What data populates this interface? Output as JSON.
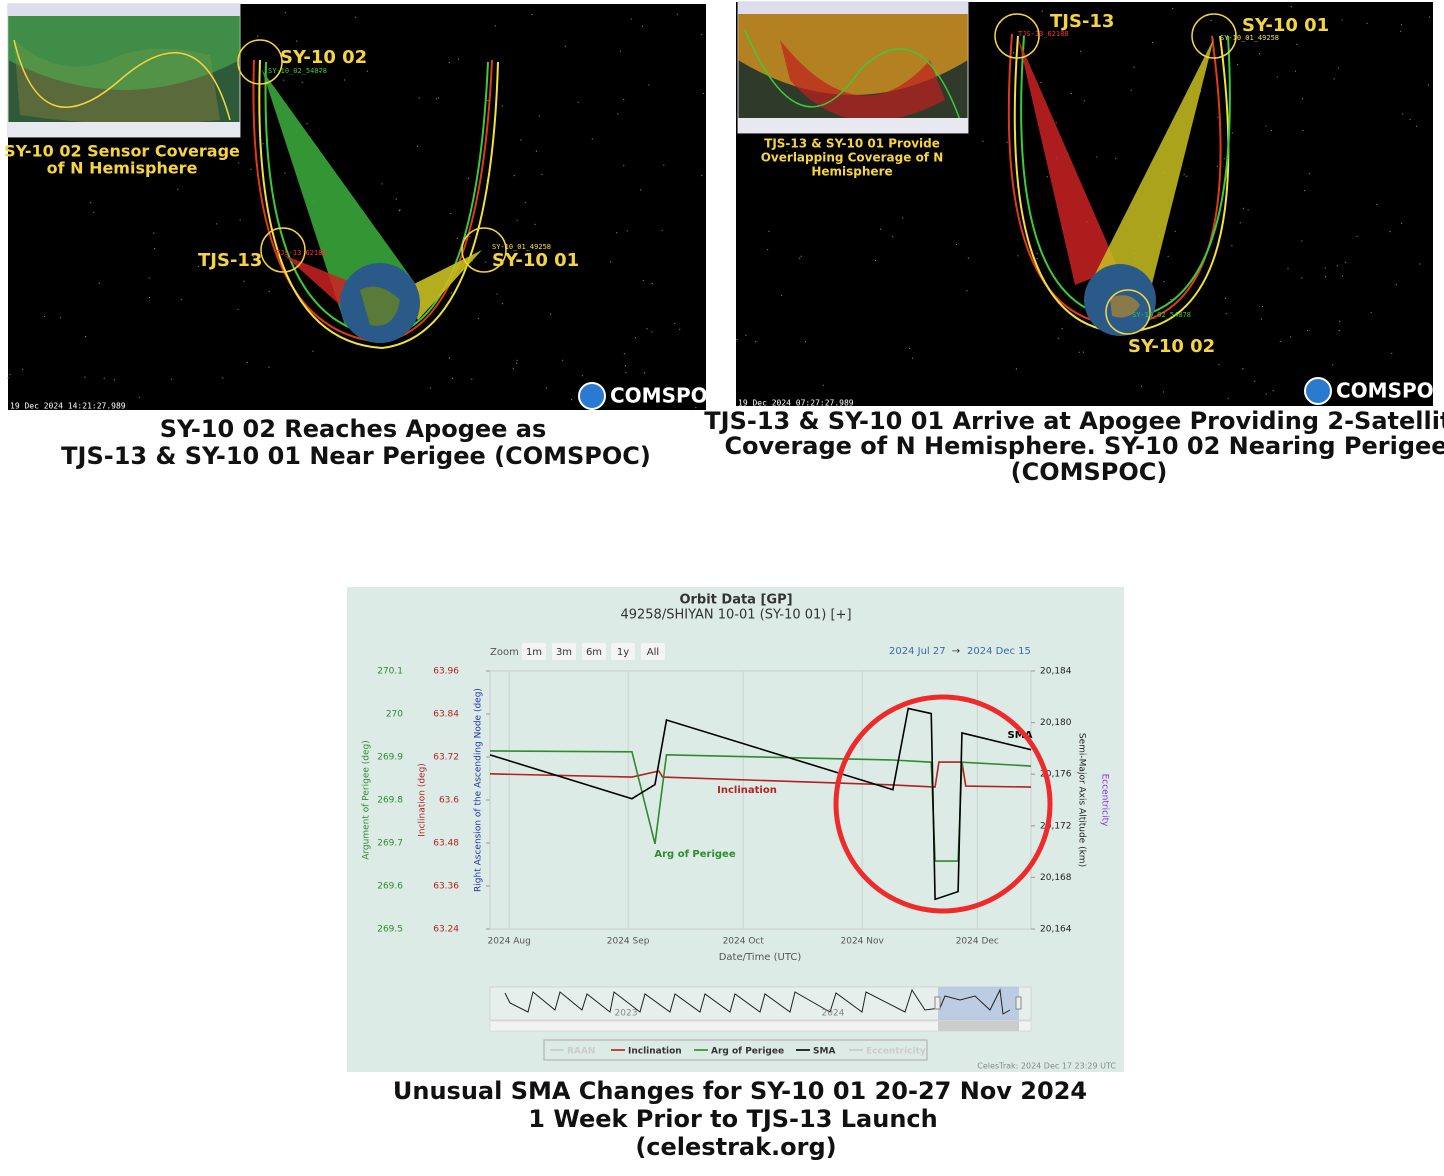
{
  "panels": [
    {
      "inset_caption": [
        "SY-10 02 Sensor Coverage",
        "of N Hemisphere"
      ],
      "labels": [
        "SY-10 02",
        "TJS-13",
        "SY-10 01"
      ],
      "sat_ids": [
        "SY-10_02_54878",
        "TJS-13_62188",
        "SY-10_01_49258"
      ],
      "timestamp": "19 Dec 2024 14:21:27.989",
      "logo": "COMSPOC",
      "caption": [
        "SY-10 02 Reaches Apogee as",
        "TJS-13 & SY-10 01 Near Perigee (COMSPOC)"
      ]
    },
    {
      "inset_caption": [
        "TJS-13 & SY-10 01 Provide",
        "Overlapping Coverage of N",
        "Hemisphere"
      ],
      "labels": [
        "TJS-13",
        "SY-10 01",
        "SY-10 02"
      ],
      "sat_ids": [
        "TJS-13_62188",
        "SY-10_01_49258",
        "SY-10_02_54878"
      ],
      "timestamp": "19 Dec 2024 07:27:27.989",
      "logo": "COMSPOC",
      "caption": [
        "TJS-13 & SY-10 01 Arrive at Apogee Providing 2-Satellite",
        "Coverage of N Hemisphere.  SY-10 02 Nearing Perigee",
        "(COMSPOC)"
      ]
    }
  ],
  "chart_data": {
    "type": "line",
    "title": "Orbit Data [GP]",
    "subtitle": "49258/SHIYAN 10-01 (SY-10 01) [+]",
    "zoom_label": "Zoom",
    "zoom_buttons": [
      "1m",
      "3m",
      "6m",
      "1y",
      "All"
    ],
    "range": [
      "2024 Jul 27",
      "→",
      "2024 Dec 15"
    ],
    "xlabel": "Date/Time (UTC)",
    "xlim": [
      "2024-07-27",
      "2024-12-15"
    ],
    "xticks": [
      {
        "value": "2024-08-01",
        "label": "2024 Aug"
      },
      {
        "value": "2024-09-01",
        "label": "2024 Sep"
      },
      {
        "value": "2024-10-01",
        "label": "2024 Oct"
      },
      {
        "value": "2024-11-01",
        "label": "2024 Nov"
      },
      {
        "value": "2024-12-01",
        "label": "2024 Dec"
      }
    ],
    "grid": true,
    "axes": [
      {
        "title": "Argument of Perigee (deg)",
        "color": "#2e8b2e",
        "lim": [
          269.5,
          270.1
        ],
        "ticks": [
          269.5,
          269.6,
          269.7,
          269.8,
          269.9,
          270,
          270.1
        ]
      },
      {
        "title": "Inclination (deg)",
        "color": "#b22222",
        "lim": [
          63.24,
          63.96
        ],
        "ticks": [
          63.24,
          63.36,
          63.48,
          63.6,
          63.72,
          63.84,
          63.96
        ]
      },
      {
        "title": "Right Ascension of the Ascending Node (deg)",
        "color": "#2233aa"
      },
      {
        "title": "Semi-Major Axis Altitude (km)",
        "color": "#222222",
        "lim": [
          20164,
          20184
        ],
        "ticks": [
          {
            "value": 20164,
            "label": "20,164"
          },
          {
            "value": 20168,
            "label": "20,168"
          },
          {
            "value": 20172,
            "label": "20,172"
          },
          {
            "value": 20176,
            "label": "20,176"
          },
          {
            "value": 20180,
            "label": "20,180"
          },
          {
            "value": 20184,
            "label": "20,184"
          }
        ]
      },
      {
        "title": "Eccentricity",
        "color": "#8a2be2"
      }
    ],
    "series": [
      {
        "name": "RAAN",
        "color": "#c8c8c8",
        "visible": false
      },
      {
        "name": "Inclination",
        "color": "#b22222",
        "axis": 1,
        "annotation": "Inclination",
        "x": [
          "2024-07-27",
          "2024-09-02",
          "2024-09-09",
          "2024-09-10",
          "2024-11-09",
          "2024-11-20",
          "2024-11-21",
          "2024-11-27",
          "2024-11-28",
          "2024-12-15"
        ],
        "values": [
          63.673,
          63.664,
          63.681,
          63.664,
          63.642,
          63.636,
          63.706,
          63.706,
          63.639,
          63.636
        ]
      },
      {
        "name": "Arg of Perigee",
        "color": "#2e8b2e",
        "axis": 0,
        "annotation": "Arg of Perigee",
        "x": [
          "2024-07-27",
          "2024-09-02",
          "2024-09-08",
          "2024-09-11",
          "2024-11-09",
          "2024-11-19",
          "2024-11-20",
          "2024-11-26",
          "2024-11-27",
          "2024-12-15"
        ],
        "values": [
          269.914,
          269.912,
          269.698,
          269.905,
          269.893,
          269.888,
          269.658,
          269.658,
          269.888,
          269.879
        ]
      },
      {
        "name": "SMA",
        "color": "#000000",
        "axis": 3,
        "annotation": "SMA",
        "x": [
          "2024-07-27",
          "2024-09-02",
          "2024-09-08",
          "2024-09-11",
          "2024-11-09",
          "2024-11-13",
          "2024-11-19",
          "2024-11-20",
          "2024-11-26",
          "2024-11-27",
          "2024-12-15"
        ],
        "values": [
          20177.5,
          20174.1,
          20175.2,
          20180.2,
          20174.8,
          20181.1,
          20180.7,
          20166.3,
          20166.9,
          20179.2,
          20177.9
        ]
      },
      {
        "name": "Eccentricity",
        "color": "#c8c8c8",
        "visible": false
      }
    ],
    "navigator_labels": [
      "2023",
      "2024"
    ],
    "credits": "CelesTrak: 2024 Dec 17 23:29 UTC",
    "caption": [
      "Unusual SMA Changes for SY-10 01 20-27 Nov 2024",
      "1 Week Prior to TJS-13 Launch",
      "(celestrak.org)"
    ]
  }
}
